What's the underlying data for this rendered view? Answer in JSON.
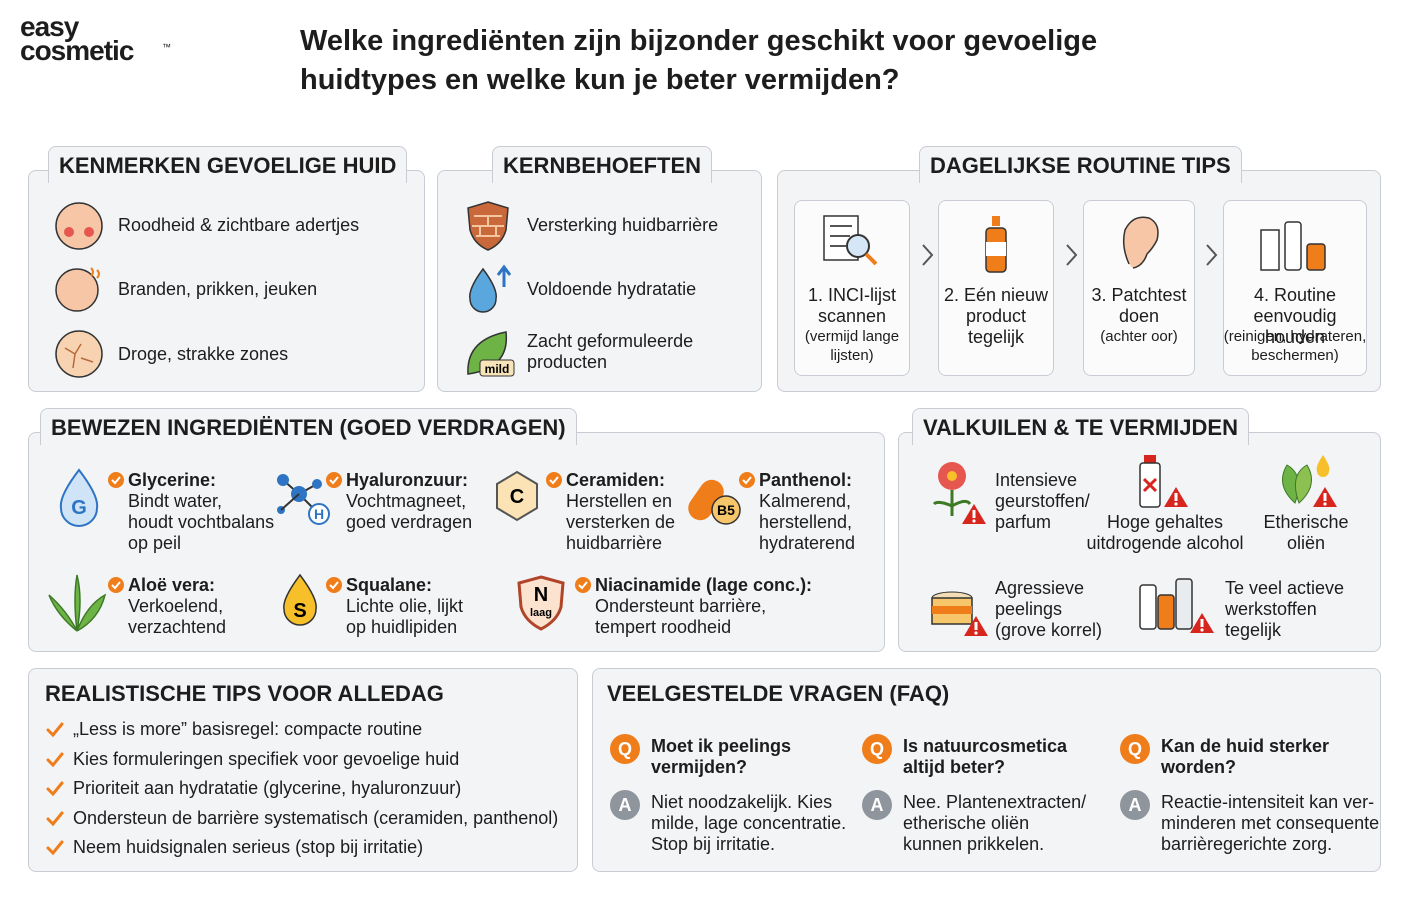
{
  "logo": {
    "line1": "easy",
    "line2": "cosmetic",
    "mark": "™"
  },
  "title": "Welke ingrediënten zijn bijzonder geschikt voor gevoelige\nhuidtypes en welke kun je beter vermijden?",
  "kenmerken": {
    "heading": "KENMERKEN GEVOELIGE HUID",
    "items": [
      "Roodheid & zichtbare adertjes",
      "Branden, prikken, jeuken",
      "Droge, strakke zones"
    ]
  },
  "kernbehoeften": {
    "heading": "KERNBEHOEFTEN",
    "items": [
      "Versterking huidbarrière",
      "Voldoende hydratatie",
      "Zacht geformuleerde\nproducten"
    ],
    "badge": "mild"
  },
  "routine": {
    "heading": "DAGELIJKSE ROUTINE TIPS",
    "steps": [
      {
        "title": "1. INCI-lijst\nscannen",
        "note": "(vermijd lange\nlijsten)"
      },
      {
        "title": "2. Eén nieuw\nproduct\ntegelijk"
      },
      {
        "title": "3. Patchtest\ndoen",
        "note": "(achter oor)"
      },
      {
        "title": "4. Routine\neenvoudig houden",
        "note": "(reinigen, hydrateren,\nbeschermen)"
      }
    ]
  },
  "ingredienten": {
    "heading": "BEWEZEN INGREDIËNTEN (GOED VERDRAGEN)",
    "items": [
      {
        "icon": "G",
        "name": "Glycerine:",
        "desc": "Bindt water,\nhoudt vochtbalans\nop peil"
      },
      {
        "icon": "H",
        "name": "Hyaluronzuur:",
        "desc": "Vochtmagneet,\ngoed verdragen"
      },
      {
        "icon": "C",
        "name": "Ceramiden:",
        "desc": "Herstellen en\nversterken de\nhuidbarrière"
      },
      {
        "icon": "B5",
        "name": "Panthenol:",
        "desc": "Kalmerend,\nherstellend,\nhydraterend"
      },
      {
        "name": "Aloë vera:",
        "desc": "Verkoelend,\nverzachtend"
      },
      {
        "icon": "S",
        "name": "Squalane:",
        "desc": "Lichte olie, lijkt\nop huidlipiden"
      },
      {
        "icon": "N",
        "icon_sub": "laag",
        "name": "Niacinamide (lage conc.):",
        "desc": "Ondersteunt barrière,\ntempert roodheid"
      }
    ]
  },
  "valkuilen": {
    "heading": "VALKUILEN & TE VERMIJDEN",
    "items": [
      "Intensieve\ngeurstoffen/\nparfum",
      "Hoge gehaltes\nuitdrogende alcohol",
      "Etherische\noliën",
      "Agressieve\npeelings\n(grove korrel)",
      "Te veel actieve\nwerkstoffen\ntegelijk"
    ]
  },
  "tips": {
    "heading": "REALISTISCHE TIPS VOOR ALLEDAG",
    "items": [
      "„Less is more” basisregel: compacte routine",
      "Kies formuleringen specifiek voor gevoelige huid",
      "Prioriteit aan hydratatie (glycerine, hyaluronzuur)",
      "Ondersteun de barrière systematisch (ceramiden, panthenol)",
      "Neem huidsignalen serieus (stop bij irritatie)"
    ]
  },
  "faq": {
    "heading": "VEELGESTELDE VRAGEN (FAQ)",
    "q_mark": "Q",
    "a_mark": "A",
    "items": [
      {
        "q": "Moet ik peelings\nvermijden?",
        "a": "Niet noodzakelijk. Kies\nmilde, lage concentratie.\nStop bij irritatie."
      },
      {
        "q": "Is natuurcosmetica\naltijd beter?",
        "a": "Nee. Plantenextracten/\netherische oliën\nkunnen prikkelen."
      },
      {
        "q": "Kan de huid sterker\nworden?",
        "a": "Reactie-intensiteit kan ver-\nminderen met consequente\nbarrièregerichte zorg."
      }
    ]
  }
}
